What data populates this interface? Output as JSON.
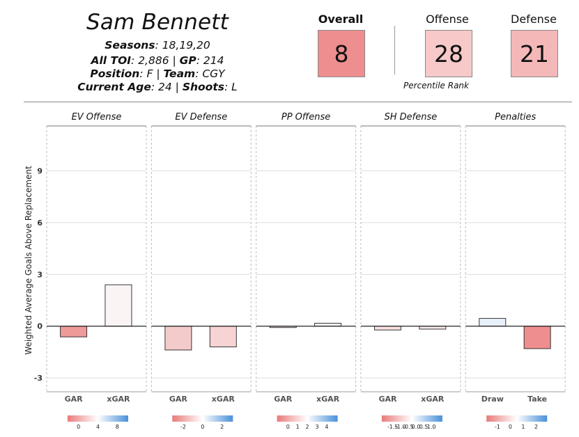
{
  "player": {
    "name": "Sam Bennett",
    "seasons_label": "Seasons",
    "seasons": ": 18,19,20",
    "toi_label": "All TOI",
    "toi": ": 2,886 | ",
    "gp_label": "GP",
    "gp": ": 214",
    "position_label": "Position",
    "position": ": F | ",
    "team_label": "Team",
    "team": ": CGY",
    "age_label": "Current Age",
    "age": ": 24 | ",
    "shoots_label": "Shoots",
    "shoots": ": L"
  },
  "ranks": {
    "overall_label": "Overall",
    "overall": "8",
    "offense_label": "Offense",
    "offense": "28",
    "defense_label": "Defense",
    "defense": "21",
    "caption": "Percentile Rank",
    "colors": {
      "overall": "#ee8e8e",
      "offense": "#f7c9c9",
      "defense": "#f5b8b8"
    }
  },
  "chart_data": {
    "type": "bar",
    "ylabel": "Weighted Average Goals Above Replacement",
    "ylim": [
      -3.8,
      11.6
    ],
    "yticks": [
      -3,
      0,
      3,
      6,
      9
    ],
    "grid": true,
    "panels": [
      {
        "title": "EV Offense",
        "categories": [
          "GAR",
          "xGAR"
        ],
        "values": [
          -0.62,
          2.4
        ],
        "colors": [
          "#ee9a9a",
          "#fbf4f4"
        ],
        "legend_ticks": [
          "0",
          "4",
          "8"
        ]
      },
      {
        "title": "EV Defense",
        "categories": [
          "GAR",
          "xGAR"
        ],
        "values": [
          -1.38,
          -1.2
        ],
        "colors": [
          "#f4cbcb",
          "#f6d4d4"
        ],
        "legend_ticks": [
          "-2",
          "0",
          "2"
        ]
      },
      {
        "title": "PP Offense",
        "categories": [
          "GAR",
          "xGAR"
        ],
        "values": [
          -0.08,
          0.17
        ],
        "colors": [
          "#fbeeee",
          "#fbf5f5"
        ],
        "legend_ticks": [
          "0",
          "1",
          "2",
          "3",
          "4"
        ]
      },
      {
        "title": "SH Defense",
        "categories": [
          "GAR",
          "xGAR"
        ],
        "values": [
          -0.22,
          -0.17
        ],
        "colors": [
          "#f8e0e0",
          "#fae8e8"
        ],
        "legend_ticks": [
          "-1.5",
          "-1.0",
          "-0.5",
          "0.0",
          "0.5",
          "1.0"
        ]
      },
      {
        "title": "Penalties",
        "categories": [
          "Draw",
          "Take"
        ],
        "values": [
          0.45,
          -1.3
        ],
        "colors": [
          "#e8f0fa",
          "#ee8e8e"
        ],
        "legend_ticks": [
          "-1",
          "0",
          "1",
          "2"
        ]
      }
    ]
  }
}
